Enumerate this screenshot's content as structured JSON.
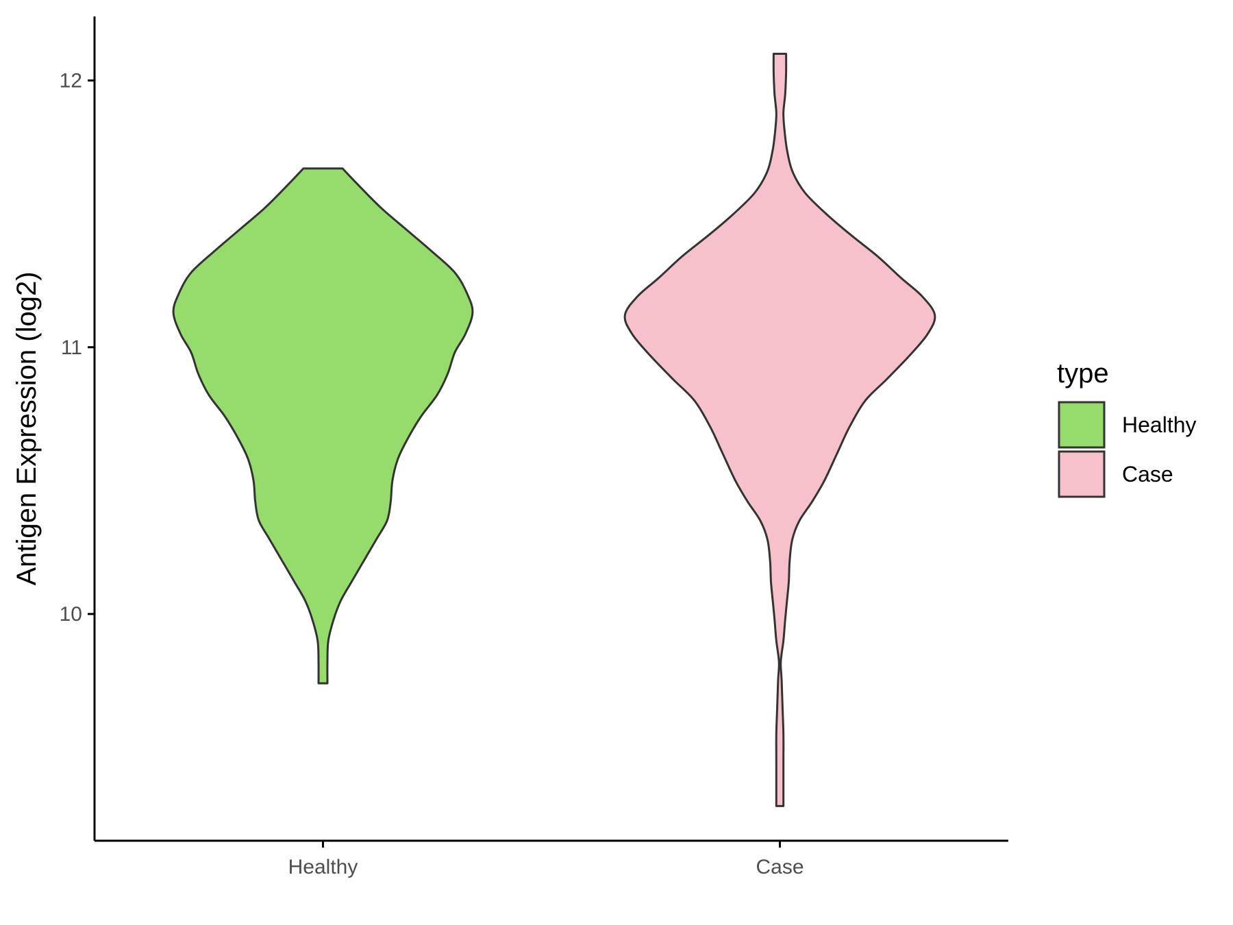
{
  "chart_data": {
    "type": "violin",
    "title": "",
    "xlabel": "",
    "ylabel": "Antigen Expression (log2)",
    "ylim": [
      9.15,
      12.24
    ],
    "yticks": [
      10,
      11,
      12
    ],
    "categories": [
      "Healthy",
      "Case"
    ],
    "legend": {
      "title": "type",
      "placement": "right",
      "entries": [
        {
          "label": "Healthy",
          "color": "#95DC6C"
        },
        {
          "label": "Case",
          "color": "#F7C1CB"
        }
      ]
    },
    "series": [
      {
        "name": "Healthy",
        "color": "#95DC6C",
        "min": 9.74,
        "max": 11.67,
        "density": [
          [
            11.67,
            0.11
          ],
          [
            11.6,
            0.21
          ],
          [
            11.52,
            0.33
          ],
          [
            11.44,
            0.47
          ],
          [
            11.36,
            0.61
          ],
          [
            11.28,
            0.74
          ],
          [
            11.2,
            0.81
          ],
          [
            11.13,
            0.84
          ],
          [
            11.05,
            0.8
          ],
          [
            10.98,
            0.74
          ],
          [
            10.9,
            0.7
          ],
          [
            10.82,
            0.64
          ],
          [
            10.74,
            0.55
          ],
          [
            10.65,
            0.47
          ],
          [
            10.58,
            0.42
          ],
          [
            10.5,
            0.39
          ],
          [
            10.42,
            0.38
          ],
          [
            10.35,
            0.36
          ],
          [
            10.28,
            0.3
          ],
          [
            10.2,
            0.23
          ],
          [
            10.12,
            0.16
          ],
          [
            10.05,
            0.1
          ],
          [
            9.98,
            0.06
          ],
          [
            9.9,
            0.03
          ],
          [
            9.82,
            0.025
          ],
          [
            9.74,
            0.025
          ]
        ]
      },
      {
        "name": "Case",
        "color": "#F7C1CB",
        "min": 9.28,
        "max": 12.1,
        "density": [
          [
            12.1,
            0.035
          ],
          [
            12.03,
            0.035
          ],
          [
            11.95,
            0.03
          ],
          [
            11.88,
            0.02
          ],
          [
            11.82,
            0.025
          ],
          [
            11.74,
            0.04
          ],
          [
            11.66,
            0.07
          ],
          [
            11.58,
            0.14
          ],
          [
            11.5,
            0.26
          ],
          [
            11.42,
            0.4
          ],
          [
            11.34,
            0.55
          ],
          [
            11.26,
            0.68
          ],
          [
            11.19,
            0.8
          ],
          [
            11.12,
            0.87
          ],
          [
            11.05,
            0.83
          ],
          [
            10.97,
            0.73
          ],
          [
            10.88,
            0.6
          ],
          [
            10.8,
            0.48
          ],
          [
            10.7,
            0.39
          ],
          [
            10.6,
            0.32
          ],
          [
            10.5,
            0.25
          ],
          [
            10.42,
            0.18
          ],
          [
            10.35,
            0.11
          ],
          [
            10.28,
            0.07
          ],
          [
            10.2,
            0.055
          ],
          [
            10.12,
            0.05
          ],
          [
            10.05,
            0.04
          ],
          [
            9.98,
            0.03
          ],
          [
            9.9,
            0.02
          ],
          [
            9.82,
            0.005
          ],
          [
            9.75,
            0.01
          ],
          [
            9.65,
            0.015
          ],
          [
            9.55,
            0.02
          ],
          [
            9.45,
            0.02
          ],
          [
            9.35,
            0.02
          ],
          [
            9.28,
            0.02
          ]
        ]
      }
    ]
  }
}
